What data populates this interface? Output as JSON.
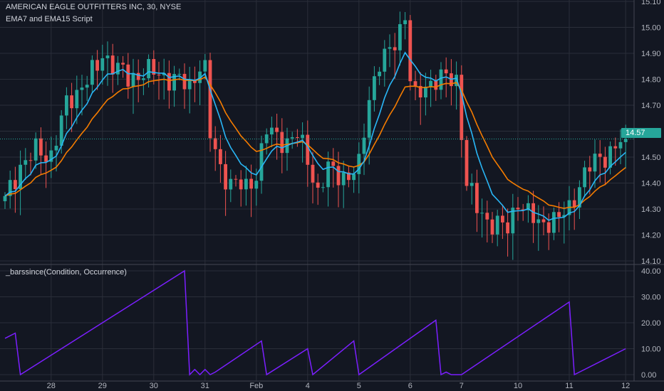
{
  "header": {
    "symbol_title": "AMERICAN EAGLE OUTFITTERS INC, 30, NYSE",
    "study_title": "EMA7 and EMA15 Script",
    "indicator_title": "_barssince(Condition, Occurrence)"
  },
  "colors": {
    "background": "#131722",
    "grid": "#2a2e39",
    "up": "#26a69a",
    "down": "#ef5350",
    "ema7": "#29b6f6",
    "ema15": "#f57c00",
    "indicator": "#7b1fff",
    "axis_text": "#b2b5be"
  },
  "chart_data": [
    {
      "type": "candlestick",
      "name": "price",
      "last_price_label": "14.57",
      "last_price": 14.57,
      "ylim": [
        14.05,
        15.1
      ],
      "y_ticks": [
        "14.10",
        "14.20",
        "14.30",
        "14.40",
        "14.50",
        "14.60",
        "14.70",
        "14.80",
        "14.90",
        "15.00",
        "15.10"
      ],
      "x_ticks": [
        "28",
        "29",
        "30",
        "31",
        "Feb",
        "4",
        "5",
        "6",
        "7",
        "10",
        "11",
        "12"
      ],
      "x_tick_bar_index": [
        9,
        19,
        29,
        39,
        49,
        59,
        69,
        79,
        89,
        100,
        110,
        121
      ],
      "bars_visible": 122,
      "series": [
        {
          "name": "EMA7 and EMA15 Script",
          "color": "#29b6f6"
        },
        {
          "name": "",
          "color": "#f57c00"
        }
      ],
      "keypoints_close": [
        [
          0,
          14.33
        ],
        [
          3,
          14.47
        ],
        [
          6,
          14.52
        ],
        [
          9,
          14.51
        ],
        [
          12,
          14.7
        ],
        [
          15,
          14.78
        ],
        [
          18,
          14.84
        ],
        [
          19,
          14.9
        ],
        [
          21,
          14.86
        ],
        [
          24,
          14.8
        ],
        [
          27,
          14.83
        ],
        [
          30,
          14.82
        ],
        [
          33,
          14.8
        ],
        [
          36,
          14.77
        ],
        [
          38,
          14.86
        ],
        [
          39,
          14.83
        ],
        [
          40,
          14.58
        ],
        [
          42,
          14.46
        ],
        [
          44,
          14.4
        ],
        [
          47,
          14.38
        ],
        [
          49,
          14.44
        ],
        [
          51,
          14.6
        ],
        [
          53,
          14.58
        ],
        [
          55,
          14.56
        ],
        [
          57,
          14.58
        ],
        [
          59,
          14.5
        ],
        [
          61,
          14.36
        ],
        [
          63,
          14.45
        ],
        [
          65,
          14.44
        ],
        [
          67,
          14.42
        ],
        [
          69,
          14.46
        ],
        [
          71,
          14.74
        ],
        [
          73,
          14.86
        ],
        [
          75,
          14.9
        ],
        [
          77,
          15.0
        ],
        [
          78,
          15.05
        ],
        [
          79,
          14.8
        ],
        [
          80,
          14.72
        ],
        [
          82,
          14.78
        ],
        [
          84,
          14.8
        ],
        [
          86,
          14.8
        ],
        [
          88,
          14.8
        ],
        [
          90,
          14.4
        ],
        [
          92,
          14.3
        ],
        [
          94,
          14.26
        ],
        [
          96,
          14.24
        ],
        [
          98,
          14.22
        ],
        [
          100,
          14.34
        ],
        [
          102,
          14.28
        ],
        [
          104,
          14.24
        ],
        [
          106,
          14.26
        ],
        [
          108,
          14.26
        ],
        [
          110,
          14.3
        ],
        [
          112,
          14.4
        ],
        [
          114,
          14.46
        ],
        [
          116,
          14.5
        ],
        [
          118,
          14.52
        ],
        [
          121,
          14.57
        ]
      ]
    },
    {
      "type": "line",
      "name": "_barssince(Condition, Occurrence)",
      "ylim": [
        0,
        40
      ],
      "y_ticks": [
        "0.00",
        "10.00",
        "20.00",
        "30.00",
        "40.00"
      ],
      "x_ticks": [
        "28",
        "29",
        "30",
        "31",
        "Feb",
        "4",
        "5",
        "6",
        "7",
        "10",
        "11",
        "12"
      ],
      "series": [
        {
          "name": "_barssince(Condition, Occurrence)",
          "color": "#7b1fff",
          "x": [
            0,
            2,
            3,
            35,
            36,
            37,
            38,
            39,
            40,
            41,
            50,
            51,
            59,
            60,
            68,
            69,
            84,
            85,
            86,
            87,
            89,
            110,
            111,
            121
          ],
          "values": [
            14,
            16,
            0,
            40,
            0,
            2,
            0,
            2,
            0,
            1,
            13,
            0,
            10,
            0,
            13,
            0,
            21,
            0,
            1,
            0,
            0,
            28,
            0,
            10
          ]
        }
      ]
    }
  ]
}
